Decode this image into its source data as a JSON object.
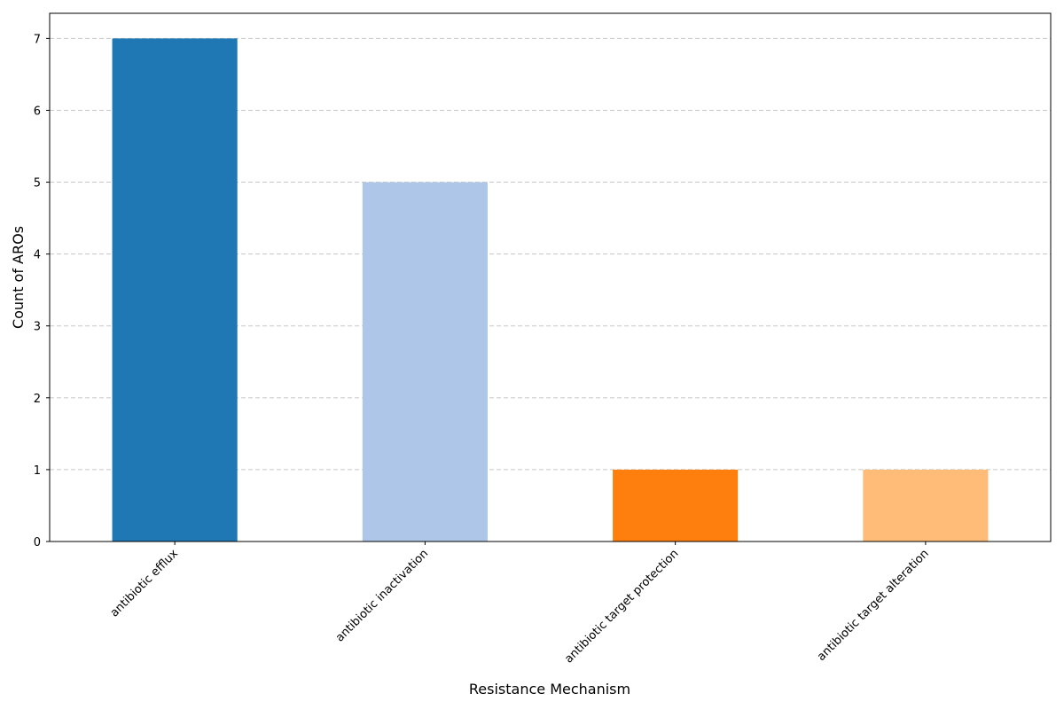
{
  "chart_data": {
    "type": "bar",
    "x_label": "Resistance Mechanism",
    "y_label": "Count of AROs",
    "categories": [
      "antibiotic efflux",
      "antibiotic inactivation",
      "antibiotic target protection",
      "antibiotic target alteration"
    ],
    "values": [
      7,
      5,
      1,
      1
    ],
    "colors": [
      "#1f77b4",
      "#aec7e8",
      "#ff7f0e",
      "#ffbb78"
    ],
    "ylim": [
      0,
      7.35
    ],
    "yticks": [
      0,
      1,
      2,
      3,
      4,
      5,
      6,
      7
    ],
    "grid": true
  }
}
